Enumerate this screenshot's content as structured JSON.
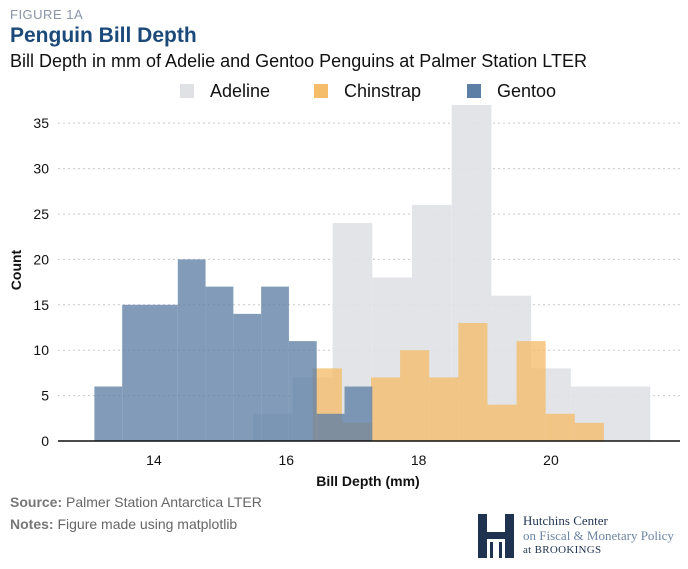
{
  "header": {
    "figure_label": "FIGURE 1A",
    "title": "Penguin Bill Depth",
    "subtitle": "Bill Depth in mm of Adelie and Gentoo Penguins at Palmer Station LTER"
  },
  "footer": {
    "source_label": "Source:",
    "source_text": "Palmer Station Antarctica LTER",
    "notes_label": "Notes:",
    "notes_text": "Figure made using matplotlib"
  },
  "logo": {
    "line1": "Hutchins Center",
    "line2": "on Fiscal & Monetary Policy",
    "line3": "at BROOKINGS"
  },
  "chart_data": {
    "type": "bar",
    "histogram": true,
    "xlabel": "Bill Depth (mm)",
    "ylabel": "Count",
    "xlim": [
      12.55,
      21.95
    ],
    "ylim": [
      0,
      37
    ],
    "xticks": [
      14,
      16,
      18,
      20
    ],
    "yticks": [
      0,
      5,
      10,
      15,
      20,
      25,
      30,
      35
    ],
    "grid": "y-dotted",
    "legend_position": "top",
    "series": [
      {
        "name": "Adeline",
        "color": "#dfe1e4",
        "bin_width": 0.6,
        "bins": [
          {
            "x0": 15.5,
            "x1": 16.1,
            "count": 3
          },
          {
            "x0": 16.1,
            "x1": 16.7,
            "count": 7
          },
          {
            "x0": 16.7,
            "x1": 17.3,
            "count": 24
          },
          {
            "x0": 17.3,
            "x1": 17.9,
            "count": 18
          },
          {
            "x0": 17.9,
            "x1": 18.5,
            "count": 26
          },
          {
            "x0": 18.5,
            "x1": 19.1,
            "count": 37
          },
          {
            "x0": 19.1,
            "x1": 19.7,
            "count": 16
          },
          {
            "x0": 19.7,
            "x1": 20.3,
            "count": 8
          },
          {
            "x0": 20.3,
            "x1": 20.9,
            "count": 6
          },
          {
            "x0": 20.9,
            "x1": 21.5,
            "count": 6
          }
        ]
      },
      {
        "name": "Chinstrap",
        "color": "#f5bc6a",
        "bin_width": 0.44,
        "bins": [
          {
            "x0": 16.4,
            "x1": 16.84,
            "count": 8
          },
          {
            "x0": 16.84,
            "x1": 17.28,
            "count": 2
          },
          {
            "x0": 17.28,
            "x1": 17.72,
            "count": 7
          },
          {
            "x0": 17.72,
            "x1": 18.16,
            "count": 10
          },
          {
            "x0": 18.16,
            "x1": 18.6,
            "count": 7
          },
          {
            "x0": 18.6,
            "x1": 19.04,
            "count": 13
          },
          {
            "x0": 19.04,
            "x1": 19.48,
            "count": 4
          },
          {
            "x0": 19.48,
            "x1": 19.92,
            "count": 11
          },
          {
            "x0": 19.92,
            "x1": 20.36,
            "count": 3
          },
          {
            "x0": 20.36,
            "x1": 20.8,
            "count": 2
          }
        ]
      },
      {
        "name": "Gentoo",
        "color": "#5d7fa5",
        "bin_width": 0.42,
        "bins": [
          {
            "x0": 13.1,
            "x1": 13.52,
            "count": 6
          },
          {
            "x0": 13.52,
            "x1": 13.94,
            "count": 15
          },
          {
            "x0": 13.94,
            "x1": 14.36,
            "count": 15
          },
          {
            "x0": 14.36,
            "x1": 14.78,
            "count": 20
          },
          {
            "x0": 14.78,
            "x1": 15.2,
            "count": 17
          },
          {
            "x0": 15.2,
            "x1": 15.62,
            "count": 14
          },
          {
            "x0": 15.62,
            "x1": 16.04,
            "count": 17
          },
          {
            "x0": 16.04,
            "x1": 16.46,
            "count": 11
          },
          {
            "x0": 16.46,
            "x1": 16.88,
            "count": 3
          },
          {
            "x0": 16.88,
            "x1": 17.3,
            "count": 6
          }
        ]
      }
    ]
  }
}
